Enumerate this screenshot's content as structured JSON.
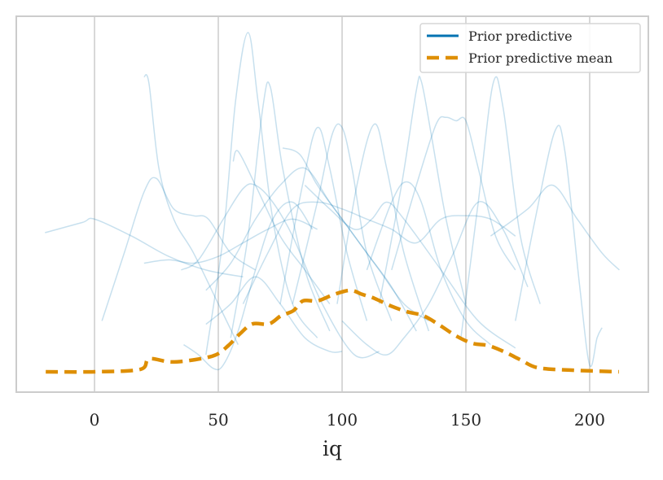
{
  "chart_data": {
    "type": "line",
    "title": "",
    "xlabel": "iq",
    "ylabel": "",
    "xlim": [
      -31.6,
      223.7
    ],
    "ylim": [
      -0.06,
      1.048
    ],
    "xticks": [
      0,
      50,
      100,
      150,
      200
    ],
    "xtick_labels": [
      "0",
      "50",
      "100",
      "150",
      "200"
    ],
    "grid": "vertical",
    "legend_position": "top-right",
    "colors": {
      "prior": "#0173b2",
      "mean": "#de8f05",
      "grid": "#cccccc"
    },
    "legend": [
      {
        "label": "Prior predictive",
        "style": "solid",
        "color": "#0173b2"
      },
      {
        "label": "Prior predictive mean",
        "style": "dashed",
        "color": "#de8f05"
      }
    ],
    "mean": [
      [
        -19.7,
        0
      ],
      [
        0,
        0
      ],
      [
        18.4,
        0.007
      ],
      [
        22,
        0.038
      ],
      [
        30.9,
        0.029
      ],
      [
        40.8,
        0.036
      ],
      [
        49,
        0.05
      ],
      [
        54,
        0.077
      ],
      [
        58.9,
        0.113
      ],
      [
        63.8,
        0.141
      ],
      [
        70.4,
        0.141
      ],
      [
        75.3,
        0.165
      ],
      [
        80.3,
        0.18
      ],
      [
        84.2,
        0.209
      ],
      [
        90.1,
        0.209
      ],
      [
        96.7,
        0.228
      ],
      [
        103.3,
        0.24
      ],
      [
        108.2,
        0.228
      ],
      [
        113.2,
        0.216
      ],
      [
        119.7,
        0.194
      ],
      [
        126.3,
        0.177
      ],
      [
        132.9,
        0.165
      ],
      [
        139.5,
        0.137
      ],
      [
        146,
        0.106
      ],
      [
        152.6,
        0.084
      ],
      [
        159.2,
        0.077
      ],
      [
        165.8,
        0.058
      ],
      [
        172.4,
        0.034
      ],
      [
        179,
        0.012
      ],
      [
        192.1,
        0.005
      ],
      [
        211.8,
        0
      ]
    ],
    "samples": [
      [
        [
          -20,
          0.41
        ],
        [
          -5,
          0.44
        ],
        [
          0,
          0.45
        ],
        [
          15,
          0.4
        ],
        [
          30,
          0.34
        ],
        [
          45,
          0.3
        ],
        [
          60,
          0.28
        ]
      ],
      [
        [
          45,
          0.05
        ],
        [
          52,
          0.4
        ],
        [
          57,
          0.8
        ],
        [
          62,
          1.0
        ],
        [
          66,
          0.8
        ],
        [
          72,
          0.45
        ],
        [
          80,
          0.2
        ],
        [
          90,
          0.1
        ]
      ],
      [
        [
          55,
          0.1
        ],
        [
          62,
          0.4
        ],
        [
          68,
          0.78
        ],
        [
          71,
          0.84
        ],
        [
          76,
          0.6
        ],
        [
          85,
          0.3
        ],
        [
          95,
          0.12
        ]
      ],
      [
        [
          20,
          0.87
        ],
        [
          22,
          0.85
        ],
        [
          26,
          0.6
        ],
        [
          32,
          0.45
        ],
        [
          40,
          0.35
        ],
        [
          50,
          0.2
        ],
        [
          58,
          0.08
        ]
      ],
      [
        [
          3,
          0.15
        ],
        [
          12,
          0.35
        ],
        [
          20,
          0.53
        ],
        [
          25,
          0.57
        ],
        [
          32,
          0.48
        ],
        [
          40,
          0.46
        ],
        [
          46,
          0.45
        ],
        [
          55,
          0.35
        ],
        [
          65,
          0.3
        ]
      ],
      [
        [
          115,
          0.2
        ],
        [
          124,
          0.55
        ],
        [
          130,
          0.83
        ],
        [
          132,
          0.856
        ],
        [
          136,
          0.7
        ],
        [
          142,
          0.45
        ],
        [
          150,
          0.2
        ]
      ],
      [
        [
          148,
          0.1
        ],
        [
          155,
          0.5
        ],
        [
          161,
          0.85
        ],
        [
          165,
          0.78
        ],
        [
          172,
          0.4
        ],
        [
          180,
          0.2
        ]
      ],
      [
        [
          170,
          0.15
        ],
        [
          178,
          0.45
        ],
        [
          186,
          0.71
        ],
        [
          190,
          0.65
        ],
        [
          196,
          0.25
        ],
        [
          200,
          0.02
        ],
        [
          203,
          0.1
        ],
        [
          205,
          0.13
        ]
      ],
      [
        [
          120,
          0.3
        ],
        [
          130,
          0.55
        ],
        [
          138,
          0.73
        ],
        [
          142,
          0.75
        ],
        [
          146,
          0.74
        ],
        [
          150,
          0.74
        ],
        [
          155,
          0.6
        ],
        [
          162,
          0.4
        ],
        [
          170,
          0.3
        ]
      ],
      [
        [
          80,
          0.2
        ],
        [
          90,
          0.5
        ],
        [
          96,
          0.7
        ],
        [
          100,
          0.72
        ],
        [
          104,
          0.6
        ],
        [
          110,
          0.35
        ],
        [
          120,
          0.15
        ]
      ],
      [
        [
          75,
          0.2
        ],
        [
          84,
          0.55
        ],
        [
          90,
          0.72
        ],
        [
          95,
          0.6
        ],
        [
          102,
          0.35
        ],
        [
          110,
          0.15
        ]
      ],
      [
        [
          98,
          0.2
        ],
        [
          106,
          0.55
        ],
        [
          113,
          0.73
        ],
        [
          118,
          0.6
        ],
        [
          125,
          0.35
        ],
        [
          135,
          0.12
        ]
      ],
      [
        [
          56,
          0.62
        ],
        [
          58,
          0.65
        ],
        [
          65,
          0.55
        ],
        [
          75,
          0.4
        ],
        [
          85,
          0.3
        ],
        [
          95,
          0.2
        ]
      ],
      [
        [
          76,
          0.66
        ],
        [
          83,
          0.64
        ],
        [
          90,
          0.55
        ],
        [
          100,
          0.45
        ],
        [
          110,
          0.35
        ],
        [
          120,
          0.25
        ],
        [
          130,
          0.12
        ]
      ],
      [
        [
          45,
          0.24
        ],
        [
          55,
          0.32
        ],
        [
          65,
          0.45
        ],
        [
          75,
          0.55
        ],
        [
          85,
          0.6
        ],
        [
          95,
          0.5
        ],
        [
          105,
          0.4
        ],
        [
          115,
          0.3
        ],
        [
          125,
          0.2
        ],
        [
          135,
          0.15
        ]
      ],
      [
        [
          60,
          0.2
        ],
        [
          70,
          0.35
        ],
        [
          80,
          0.48
        ],
        [
          90,
          0.5
        ],
        [
          100,
          0.48
        ],
        [
          110,
          0.45
        ],
        [
          120,
          0.42
        ],
        [
          130,
          0.38
        ],
        [
          140,
          0.45
        ],
        [
          150,
          0.46
        ],
        [
          160,
          0.45
        ],
        [
          170,
          0.4
        ]
      ],
      [
        [
          160,
          0.4
        ],
        [
          175,
          0.48
        ],
        [
          185,
          0.55
        ],
        [
          195,
          0.45
        ],
        [
          205,
          0.35
        ],
        [
          212,
          0.3
        ]
      ],
      [
        [
          20,
          0.32
        ],
        [
          30,
          0.33
        ],
        [
          40,
          0.32
        ],
        [
          50,
          0.34
        ],
        [
          60,
          0.38
        ],
        [
          70,
          0.42
        ],
        [
          80,
          0.45
        ],
        [
          90,
          0.42
        ]
      ],
      [
        [
          35,
          0.3
        ],
        [
          42,
          0.33
        ],
        [
          52,
          0.45
        ],
        [
          60,
          0.54
        ],
        [
          65,
          0.55
        ],
        [
          72,
          0.5
        ],
        [
          80,
          0.4
        ],
        [
          92,
          0.2
        ],
        [
          105,
          0.05
        ],
        [
          115,
          0.06
        ]
      ],
      [
        [
          45,
          0.14
        ],
        [
          55,
          0.2
        ],
        [
          65,
          0.28
        ],
        [
          75,
          0.2
        ],
        [
          85,
          0.1
        ],
        [
          95,
          0.06
        ],
        [
          100,
          0.06
        ]
      ],
      [
        [
          100,
          0.15
        ],
        [
          110,
          0.08
        ],
        [
          118,
          0.05
        ],
        [
          125,
          0.1
        ],
        [
          135,
          0.2
        ],
        [
          145,
          0.35
        ],
        [
          155,
          0.5
        ],
        [
          165,
          0.42
        ],
        [
          175,
          0.25
        ]
      ],
      [
        [
          110,
          0.3
        ],
        [
          120,
          0.5
        ],
        [
          126,
          0.56
        ],
        [
          132,
          0.5
        ],
        [
          140,
          0.3
        ],
        [
          150,
          0.15
        ],
        [
          160,
          0.08
        ]
      ],
      [
        [
          85,
          0.55
        ],
        [
          95,
          0.48
        ],
        [
          105,
          0.42
        ],
        [
          112,
          0.45
        ],
        [
          118,
          0.5
        ],
        [
          125,
          0.45
        ],
        [
          140,
          0.3
        ],
        [
          155,
          0.15
        ],
        [
          170,
          0.07
        ]
      ],
      [
        [
          36,
          0.08
        ],
        [
          42,
          0.05
        ],
        [
          48,
          0.01
        ],
        [
          52,
          0.02
        ],
        [
          58,
          0.12
        ],
        [
          65,
          0.3
        ],
        [
          72,
          0.45
        ],
        [
          80,
          0.5
        ],
        [
          88,
          0.42
        ]
      ]
    ]
  }
}
